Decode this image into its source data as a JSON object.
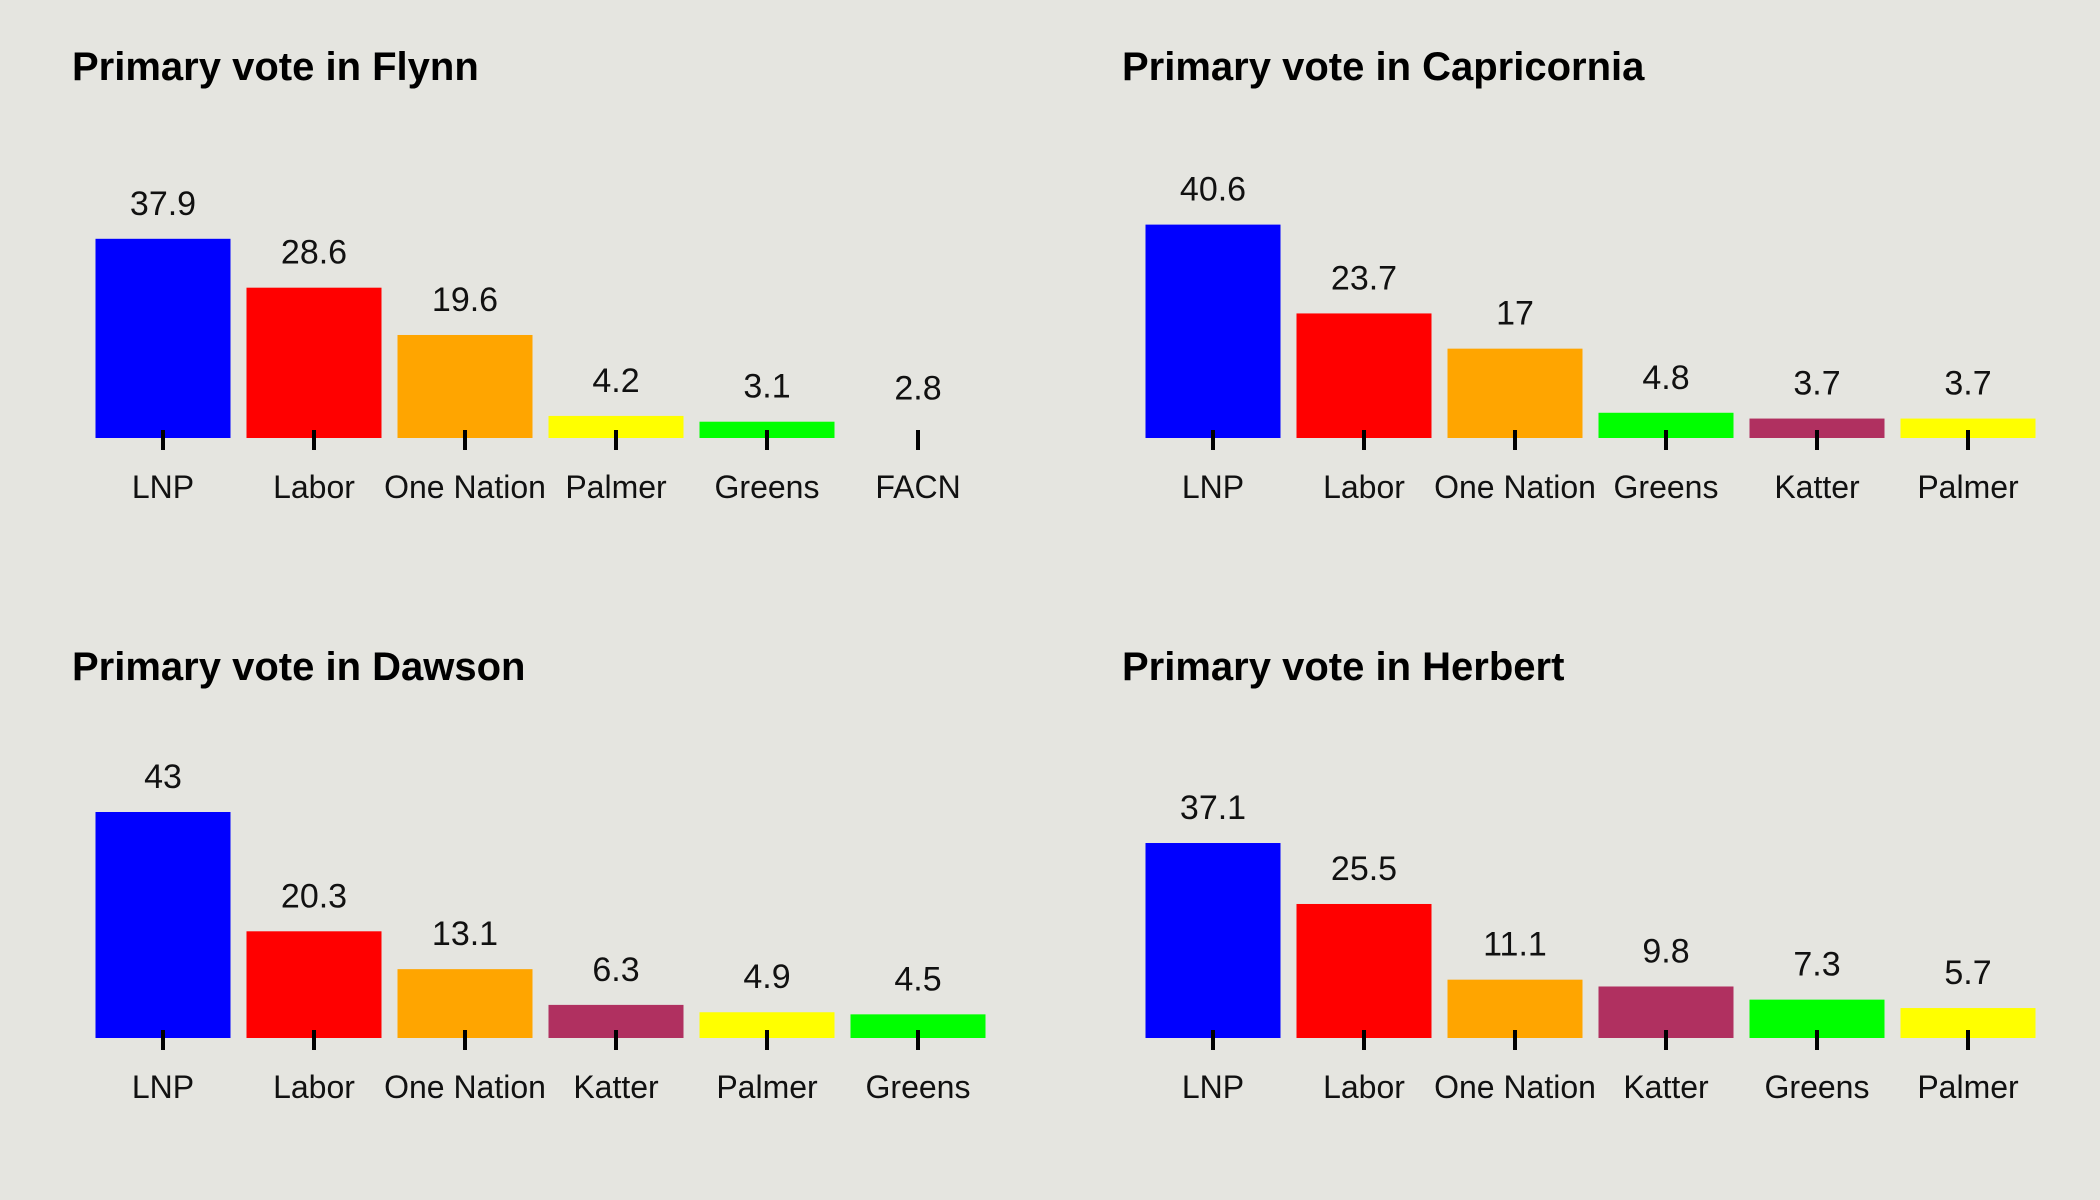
{
  "colors": {
    "LNP": "#0000ff",
    "Labor": "#ff0000",
    "One Nation": "#ffa500",
    "Palmer": "#ffff00",
    "Greens": "#00ff00",
    "Katter": "#b03060",
    "FACN": "#e5e5e0"
  },
  "chart_data": [
    {
      "type": "bar",
      "title": "Primary vote in Flynn",
      "categories": [
        "LNP",
        "Labor",
        "One Nation",
        "Palmer",
        "Greens",
        "FACN"
      ],
      "values": [
        37.9,
        28.6,
        19.6,
        4.2,
        3.1,
        2.8
      ],
      "value_labels": [
        "37.9",
        "28.6",
        "19.6",
        "4.2",
        "3.1",
        "2.8"
      ],
      "xlabel": "",
      "ylabel": "",
      "ylim": [
        0,
        43
      ],
      "grid": false
    },
    {
      "type": "bar",
      "title": "Primary vote in Capricornia",
      "categories": [
        "LNP",
        "Labor",
        "One Nation",
        "Greens",
        "Katter",
        "Palmer"
      ],
      "values": [
        40.6,
        23.7,
        17,
        4.8,
        3.7,
        3.7
      ],
      "value_labels": [
        "40.6",
        "23.7",
        "17",
        "4.8",
        "3.7",
        "3.7"
      ],
      "xlabel": "",
      "ylabel": "",
      "ylim": [
        0,
        43
      ],
      "grid": false
    },
    {
      "type": "bar",
      "title": "Primary vote in Dawson",
      "categories": [
        "LNP",
        "Labor",
        "One Nation",
        "Katter",
        "Palmer",
        "Greens"
      ],
      "values": [
        43,
        20.3,
        13.1,
        6.3,
        4.9,
        4.5
      ],
      "value_labels": [
        "43",
        "20.3",
        "13.1",
        "6.3",
        "4.9",
        "4.5"
      ],
      "xlabel": "",
      "ylabel": "",
      "ylim": [
        0,
        43
      ],
      "grid": false
    },
    {
      "type": "bar",
      "title": "Primary vote in Herbert",
      "categories": [
        "LNP",
        "Labor",
        "One Nation",
        "Katter",
        "Greens",
        "Palmer"
      ],
      "values": [
        37.1,
        25.5,
        11.1,
        9.8,
        7.3,
        5.7
      ],
      "value_labels": [
        "37.1",
        "25.5",
        "11.1",
        "9.8",
        "7.3",
        "5.7"
      ],
      "xlabel": "",
      "ylabel": "",
      "ylim": [
        0,
        43
      ],
      "grid": false
    }
  ]
}
